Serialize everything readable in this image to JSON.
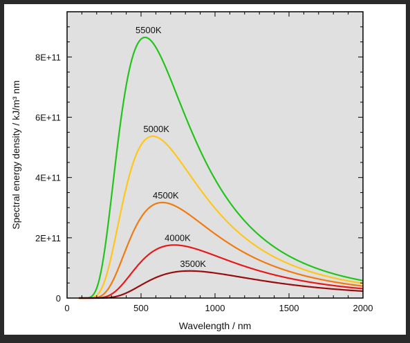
{
  "chart_data": {
    "type": "line",
    "title": "",
    "xlabel": "Wavelength / nm",
    "ylabel": "Spectral energy density / kJ/m³ nm",
    "xlim": [
      0,
      2000
    ],
    "ylim": [
      0,
      950000000000.0
    ],
    "x_ticks": [
      {
        "value": 0,
        "label": "0"
      },
      {
        "value": 500,
        "label": "500"
      },
      {
        "value": 1000,
        "label": "1000"
      },
      {
        "value": 1500,
        "label": "1500"
      },
      {
        "value": 2000,
        "label": "2000"
      }
    ],
    "y_ticks": [
      {
        "value": 0,
        "label": "0"
      },
      {
        "value": 200000000000,
        "label": "2E+11"
      },
      {
        "value": 400000000000,
        "label": "4E+11"
      },
      {
        "value": 600000000000,
        "label": "6E+11"
      },
      {
        "value": 800000000000,
        "label": "8E+11"
      }
    ],
    "grid": false,
    "background": "#e0e0e0",
    "series": [
      {
        "label": "5500K",
        "temperature": 5500,
        "color": "#22c41a",
        "peak": [
          527,
          865000000000
        ]
      },
      {
        "label": "5000K",
        "temperature": 5000,
        "color": "#ffc61a",
        "peak": [
          580,
          537000000000
        ]
      },
      {
        "label": "4500K",
        "temperature": 4500,
        "color": "#f07a10",
        "peak": [
          644,
          317000000000
        ]
      },
      {
        "label": "4000K",
        "temperature": 4000,
        "color": "#e81818",
        "peak": [
          724,
          176000000000
        ]
      },
      {
        "label": "3500K",
        "temperature": 3500,
        "color": "#9a0c0c",
        "peak": [
          828,
          90000000000
        ]
      }
    ]
  }
}
